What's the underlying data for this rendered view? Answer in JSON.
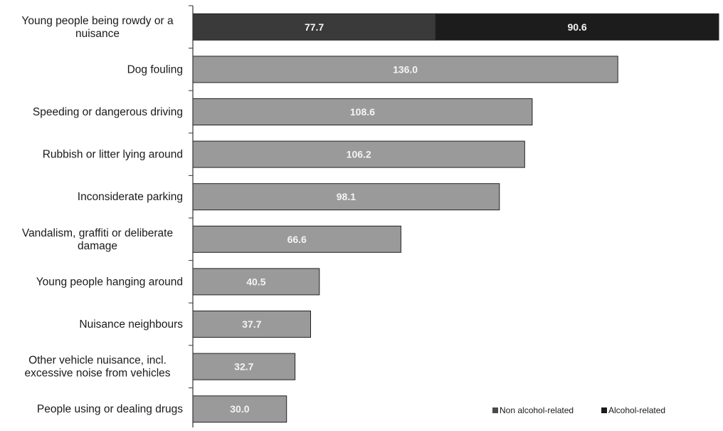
{
  "chart_data": {
    "type": "bar",
    "orientation": "horizontal",
    "stacked": true,
    "categories": [
      "Young people being rowdy or a nuisance",
      "Dog fouling",
      "Speeding or dangerous driving",
      "Rubbish or litter lying around",
      "Inconsiderate parking",
      "Vandalism, graffiti or deliberate damage",
      "Young people hanging around",
      "Nuisance neighbours",
      "Other vehicle nuisance, incl. excessive noise from vehicles",
      "People using or dealing drugs"
    ],
    "category_lines": [
      [
        "Young people being rowdy or a",
        "nuisance"
      ],
      [
        "Dog fouling"
      ],
      [
        "Speeding or dangerous driving"
      ],
      [
        "Rubbish or litter lying around"
      ],
      [
        "Inconsiderate parking"
      ],
      [
        "Vandalism, graffiti or deliberate",
        "damage"
      ],
      [
        "Young people hanging around"
      ],
      [
        "Nuisance neighbours"
      ],
      [
        "Other vehicle nuisance, incl.",
        "excessive noise from vehicles"
      ],
      [
        "People using or dealing drugs"
      ]
    ],
    "series": [
      {
        "name": "Non alcohol-related",
        "color": "#9a9a9a",
        "values": [
          77.7,
          136.0,
          108.6,
          106.2,
          98.1,
          66.6,
          40.5,
          37.7,
          32.7,
          30.0
        ],
        "labels": [
          "77.7",
          "136.0",
          "108.6",
          "106.2",
          "98.1",
          "66.6",
          "40.5",
          "37.7",
          "32.7",
          "30.0"
        ]
      },
      {
        "name": "Alcohol-related",
        "color": "#1c1c1c",
        "values": [
          90.6,
          0,
          0,
          0,
          0,
          0,
          0,
          0,
          0,
          0
        ],
        "labels": [
          "90.6",
          "",
          "",
          "",
          "",
          "",
          "",
          "",
          "",
          ""
        ]
      }
    ],
    "first_row_colors": [
      "#3a3a3a",
      "#1c1c1c"
    ],
    "xlim": [
      0,
      168.3
    ],
    "legend_position": "bottom-right",
    "grid": false
  }
}
